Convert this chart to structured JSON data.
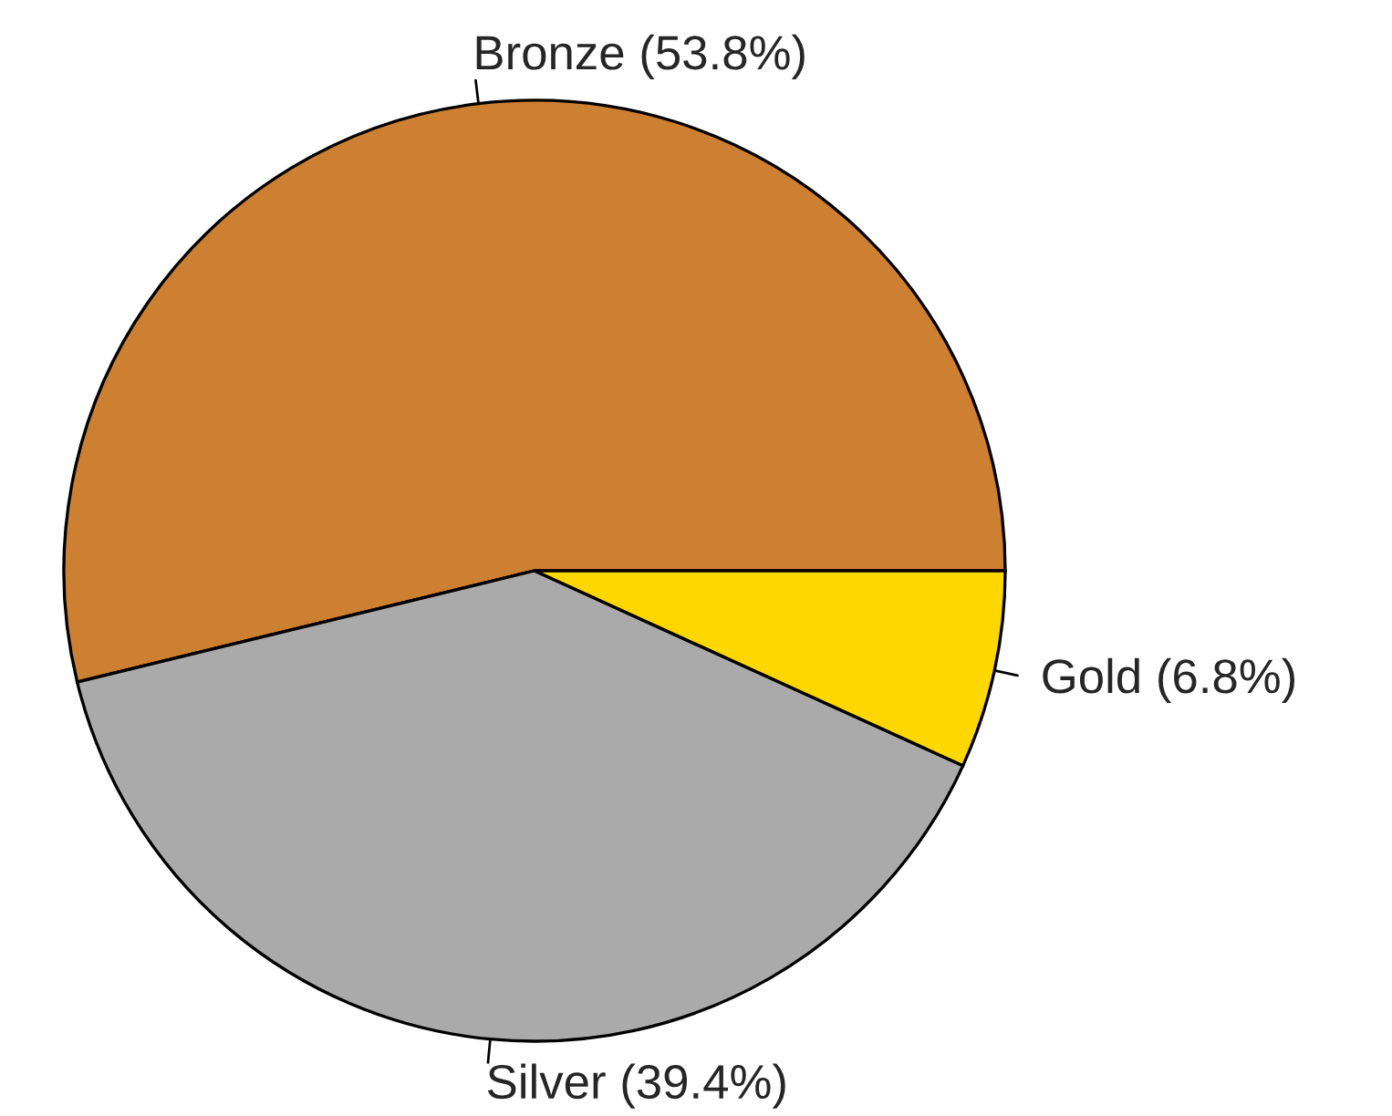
{
  "chart_data": {
    "type": "pie",
    "categories": [
      "Bronze (53.8%)",
      "Silver (39.4%)",
      "Gold (6.8%)"
    ],
    "values": [
      53.8,
      39.4,
      6.8
    ],
    "colors": [
      "#cd7f32",
      "#aaaaaa",
      "#ffd700"
    ]
  }
}
